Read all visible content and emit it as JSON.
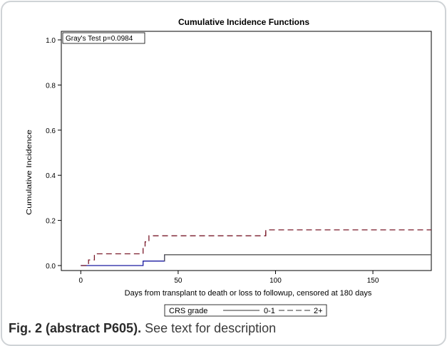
{
  "chart_data": {
    "type": "line",
    "title": "Cumulative Incidence Functions",
    "xlabel": "Days from transplant to death or loss to followup, censored at 180 days",
    "ylabel": "Cumulative Incidence",
    "xlim": [
      -10,
      180
    ],
    "ylim": [
      0,
      1.0
    ],
    "x_ticks": [
      0,
      50,
      100,
      150
    ],
    "y_ticks": [
      0.0,
      0.2,
      0.4,
      0.6,
      0.8,
      1.0
    ],
    "x_tick_labels": [
      "0",
      "50",
      "100",
      "150"
    ],
    "y_tick_labels": [
      "0.0",
      "0.2",
      "0.4",
      "0.6",
      "0.8",
      "1.0"
    ],
    "annotation": "Gray's Test p=0.0984",
    "legend_title": "CRS grade",
    "legend_position": "bottom",
    "series": [
      {
        "name": "0-1",
        "style": "solid",
        "steps": [
          [
            0,
            0.0
          ],
          [
            32,
            0.0
          ],
          [
            32,
            0.02
          ],
          [
            43,
            0.02
          ],
          [
            43,
            0.048
          ],
          [
            180,
            0.048
          ]
        ]
      },
      {
        "name": "2+",
        "style": "dashed",
        "steps": [
          [
            0,
            0.0
          ],
          [
            4,
            0.0
          ],
          [
            4,
            0.025
          ],
          [
            7,
            0.025
          ],
          [
            7,
            0.052
          ],
          [
            32,
            0.052
          ],
          [
            32,
            0.078
          ],
          [
            33,
            0.078
          ],
          [
            33,
            0.105
          ],
          [
            35,
            0.105
          ],
          [
            35,
            0.132
          ],
          [
            95,
            0.132
          ],
          [
            95,
            0.158
          ],
          [
            180,
            0.158
          ]
        ]
      }
    ]
  },
  "colors": {
    "series_0_1": "#1a1aa0",
    "series_2plus": "#7a1a2a",
    "series_0_1_tail": "#555555",
    "series_2plus_tail": "#7a1a2a",
    "axis": "#000000"
  },
  "caption": {
    "label": "Fig. 2 (abstract P605).",
    "text": " See text for description"
  }
}
